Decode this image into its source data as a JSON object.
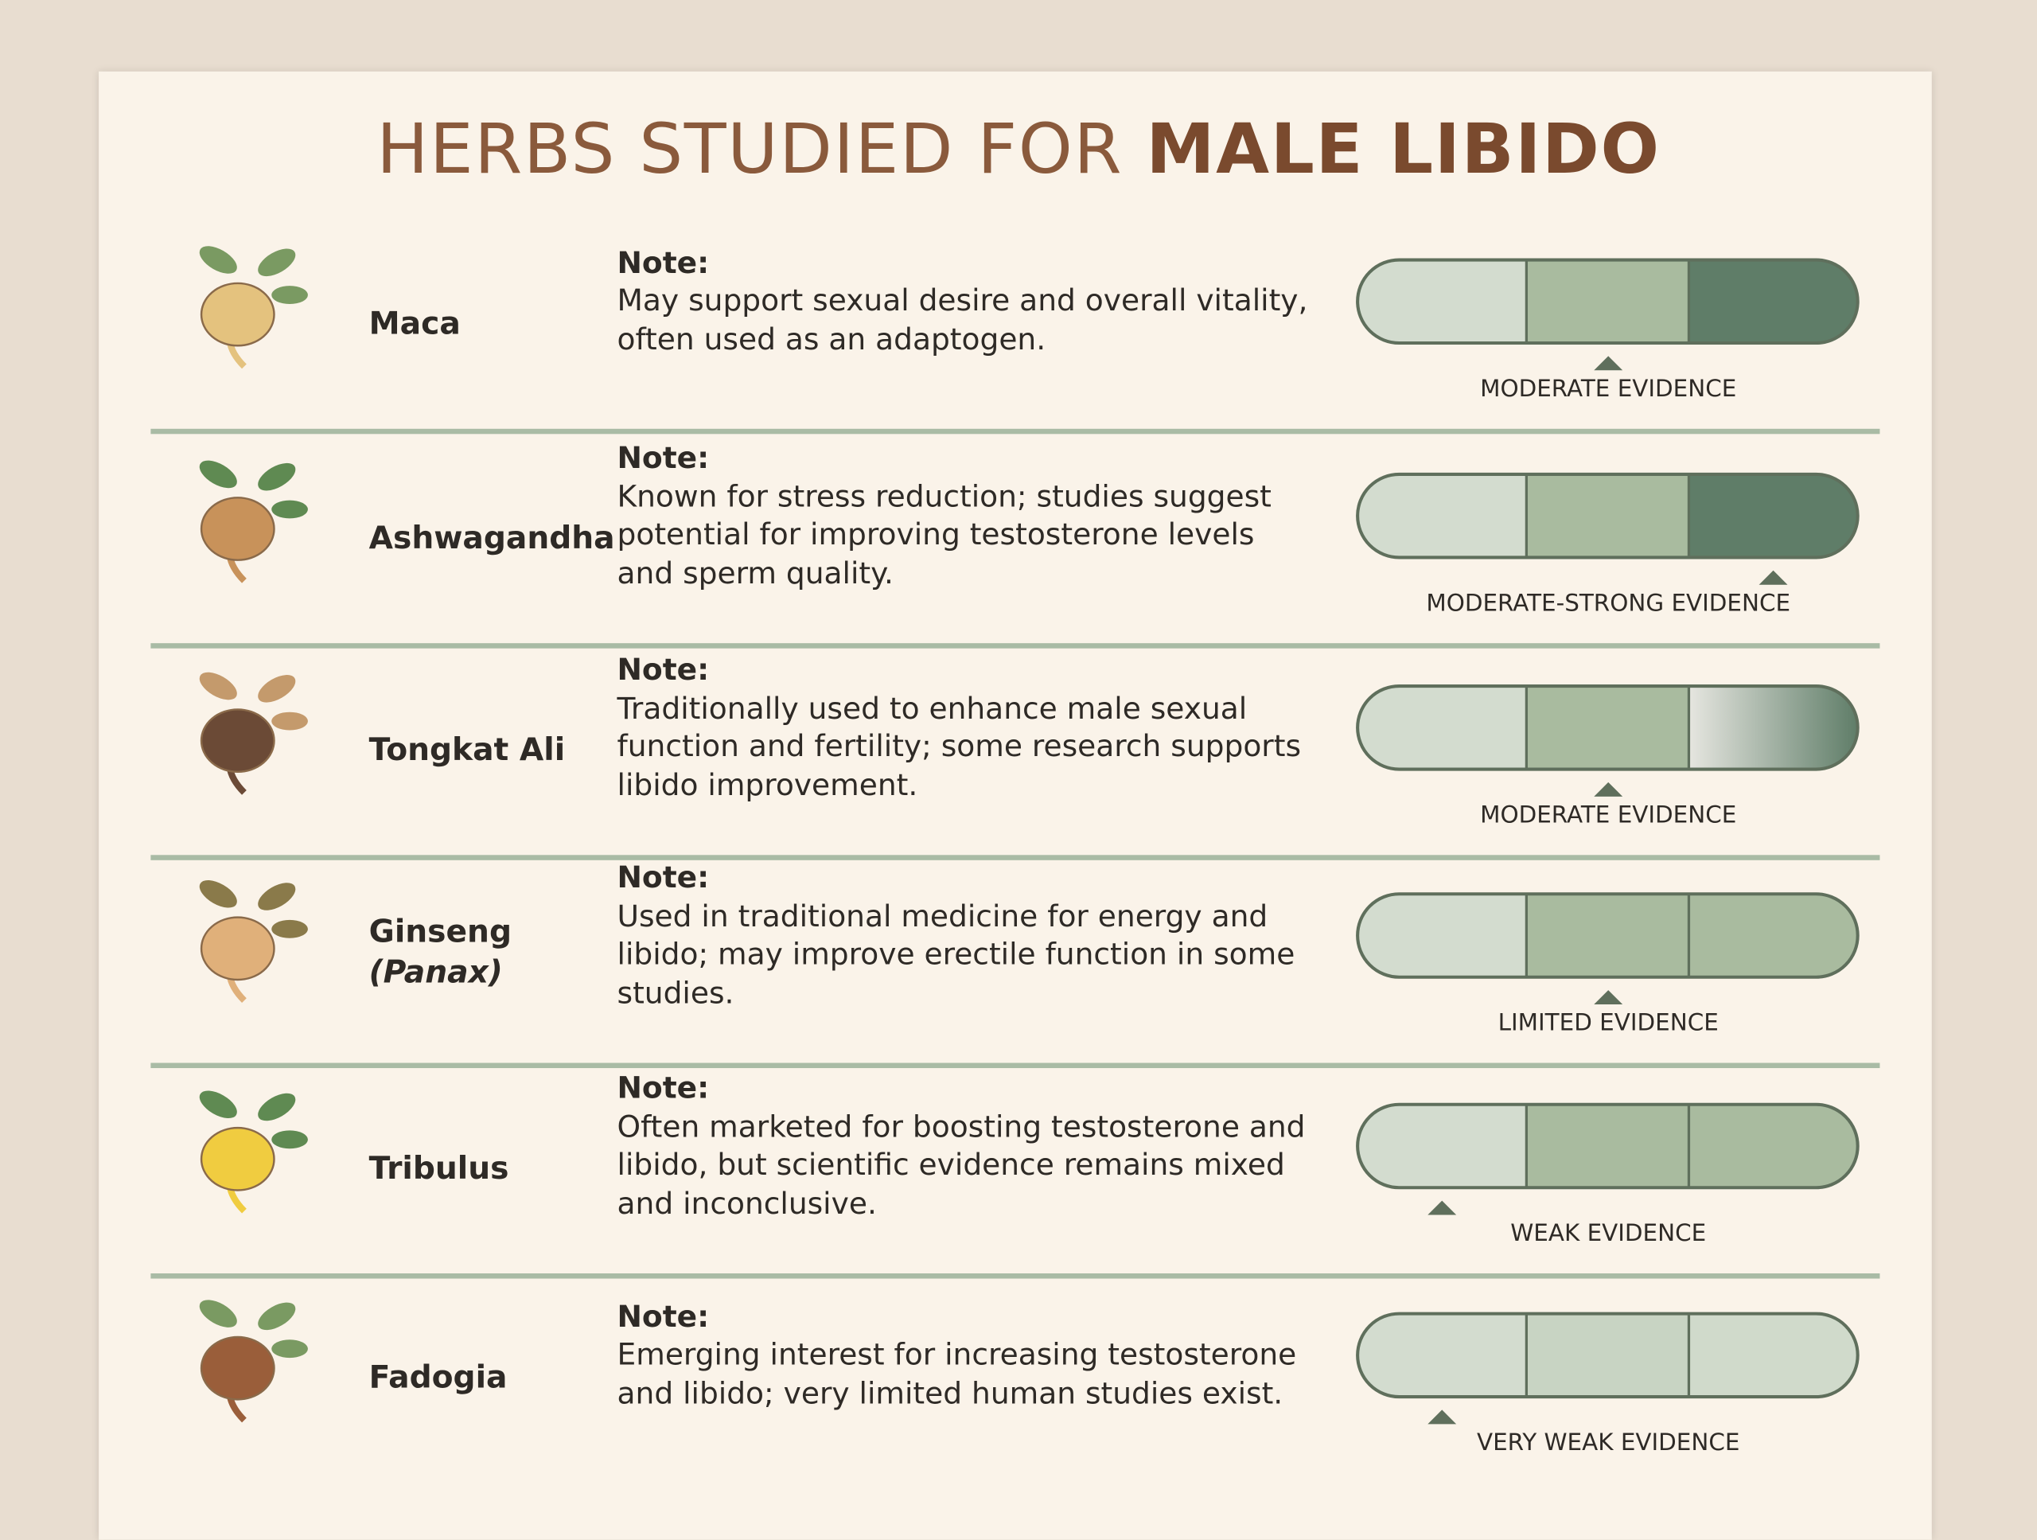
{
  "title": {
    "prefix": "HERBS STUDIED FOR",
    "emphasis": "MALE LIBIDO"
  },
  "rows": [
    {
      "name": "Maca",
      "note_label": "Note:",
      "note_lines": [
        "May support sexual desire and overall vitality,",
        "often used as an adaptogen."
      ],
      "evidence": "MODERATE EVIDENCE"
    },
    {
      "name": "Ashwagandha",
      "note_label": "Note:",
      "note_lines": [
        "Known for stress reduction; studies suggest",
        "potential for improving testosterone levels",
        "and sperm quality."
      ],
      "evidence": "MODERATE-STRONG EVIDENCE"
    },
    {
      "name": "Tongkat Ali",
      "note_label": "Note:",
      "note_lines": [
        "Traditionally used to enhance male sexual",
        "function and fertility; some research supports",
        "libido improvement."
      ],
      "evidence": "MODERATE EVIDENCE"
    },
    {
      "name": "Ginseng",
      "name_line2": "(Panax)",
      "note_label": "Note:",
      "note_lines": [
        "Used in traditional medicine for energy and",
        "libido; may improve erectile function in some",
        "studies."
      ],
      "evidence": "LIMITED EVIDENCE"
    },
    {
      "name": "Tribulus",
      "note_label": "Note:",
      "note_lines": [
        "Often marketed for boosting testosterone and",
        "libido, but scientific evidence remains mixed",
        "and inconclusive."
      ],
      "evidence": "WEAK EVIDENCE"
    },
    {
      "name": "Fadogia",
      "note_label": "Note:",
      "note_lines": [
        "Emerging interest for increasing testosterone",
        "and libido; very limited human studies exist."
      ],
      "evidence": "VERY WEAK EVIDENCE"
    }
  ]
}
